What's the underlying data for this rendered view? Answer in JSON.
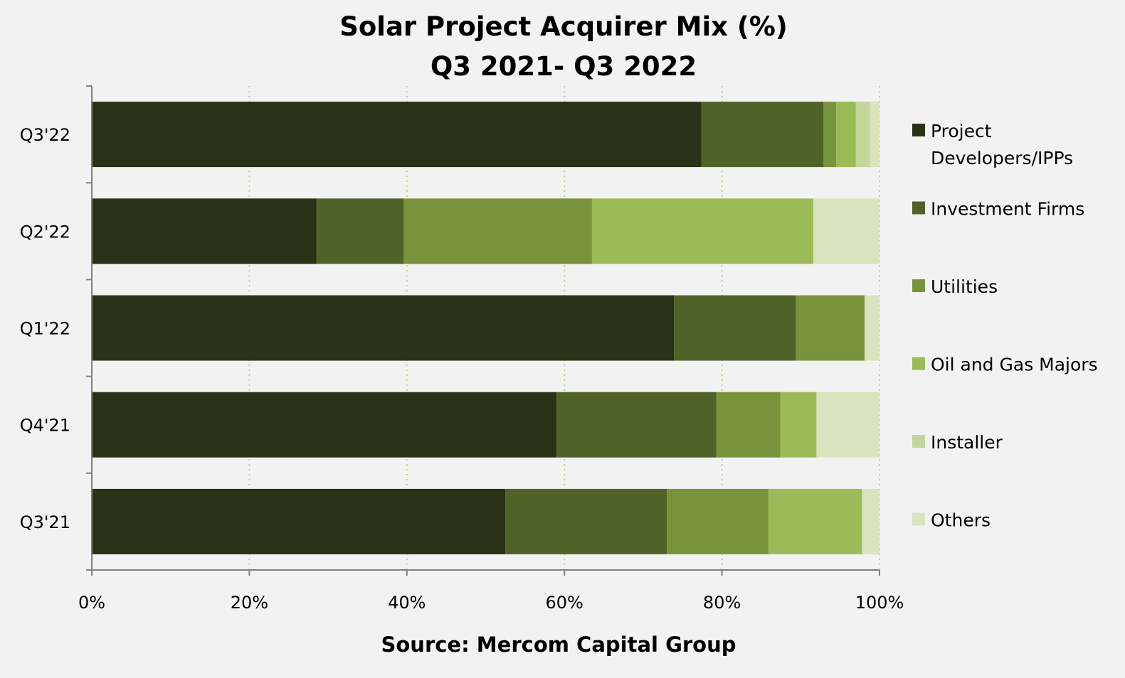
{
  "colors": {
    "background": "#f2f2f2",
    "axis": "#808080",
    "grid": "#b9d08a",
    "series": [
      "#283217",
      "#4f6228",
      "#77933c",
      "#9bbb59",
      "#c3d69b",
      "#d7e4bd"
    ]
  },
  "chart_data": {
    "type": "bar",
    "orientation": "horizontal",
    "stacked": "percent",
    "title_lines": [
      "Solar Project Acquirer Mix (%)",
      "Q3 2021- Q3 2022"
    ],
    "source": "Source: Mercom Capital Group",
    "categories": [
      "Q3'22",
      "Q2'22",
      "Q1'22",
      "Q4'21",
      "Q3'21"
    ],
    "xlim": [
      0,
      100
    ],
    "x_ticks": [
      0,
      20,
      40,
      60,
      80,
      100
    ],
    "x_tick_labels": [
      "0%",
      "20%",
      "40%",
      "60%",
      "80%",
      "100%"
    ],
    "grid": "vertical dotted",
    "legend_position": "right",
    "series": [
      {
        "name": "Project Developers/IPPs",
        "name_lines": [
          "Project",
          "Developers/IPPs"
        ],
        "values": [
          77.4,
          28.5,
          73.9,
          59,
          52.5
        ]
      },
      {
        "name": "Investment Firms",
        "name_lines": [
          "Investment Firms"
        ],
        "values": [
          15.5,
          11.1,
          15.5,
          20.3,
          20.5
        ]
      },
      {
        "name": "Utilities",
        "name_lines": [
          "Utilities"
        ],
        "values": [
          1.6,
          23.9,
          8.7,
          8.1,
          12.9
        ]
      },
      {
        "name": "Oil and Gas Majors",
        "name_lines": [
          "Oil and Gas Majors"
        ],
        "values": [
          2.5,
          28.1,
          0,
          4.6,
          11.9
        ]
      },
      {
        "name": "Installer",
        "name_lines": [
          "Installer"
        ],
        "values": [
          1.8,
          0,
          0,
          0,
          0
        ]
      },
      {
        "name": "Others",
        "name_lines": [
          "Others"
        ],
        "values": [
          1.2,
          8.4,
          1.9,
          8,
          2.2
        ]
      }
    ]
  }
}
